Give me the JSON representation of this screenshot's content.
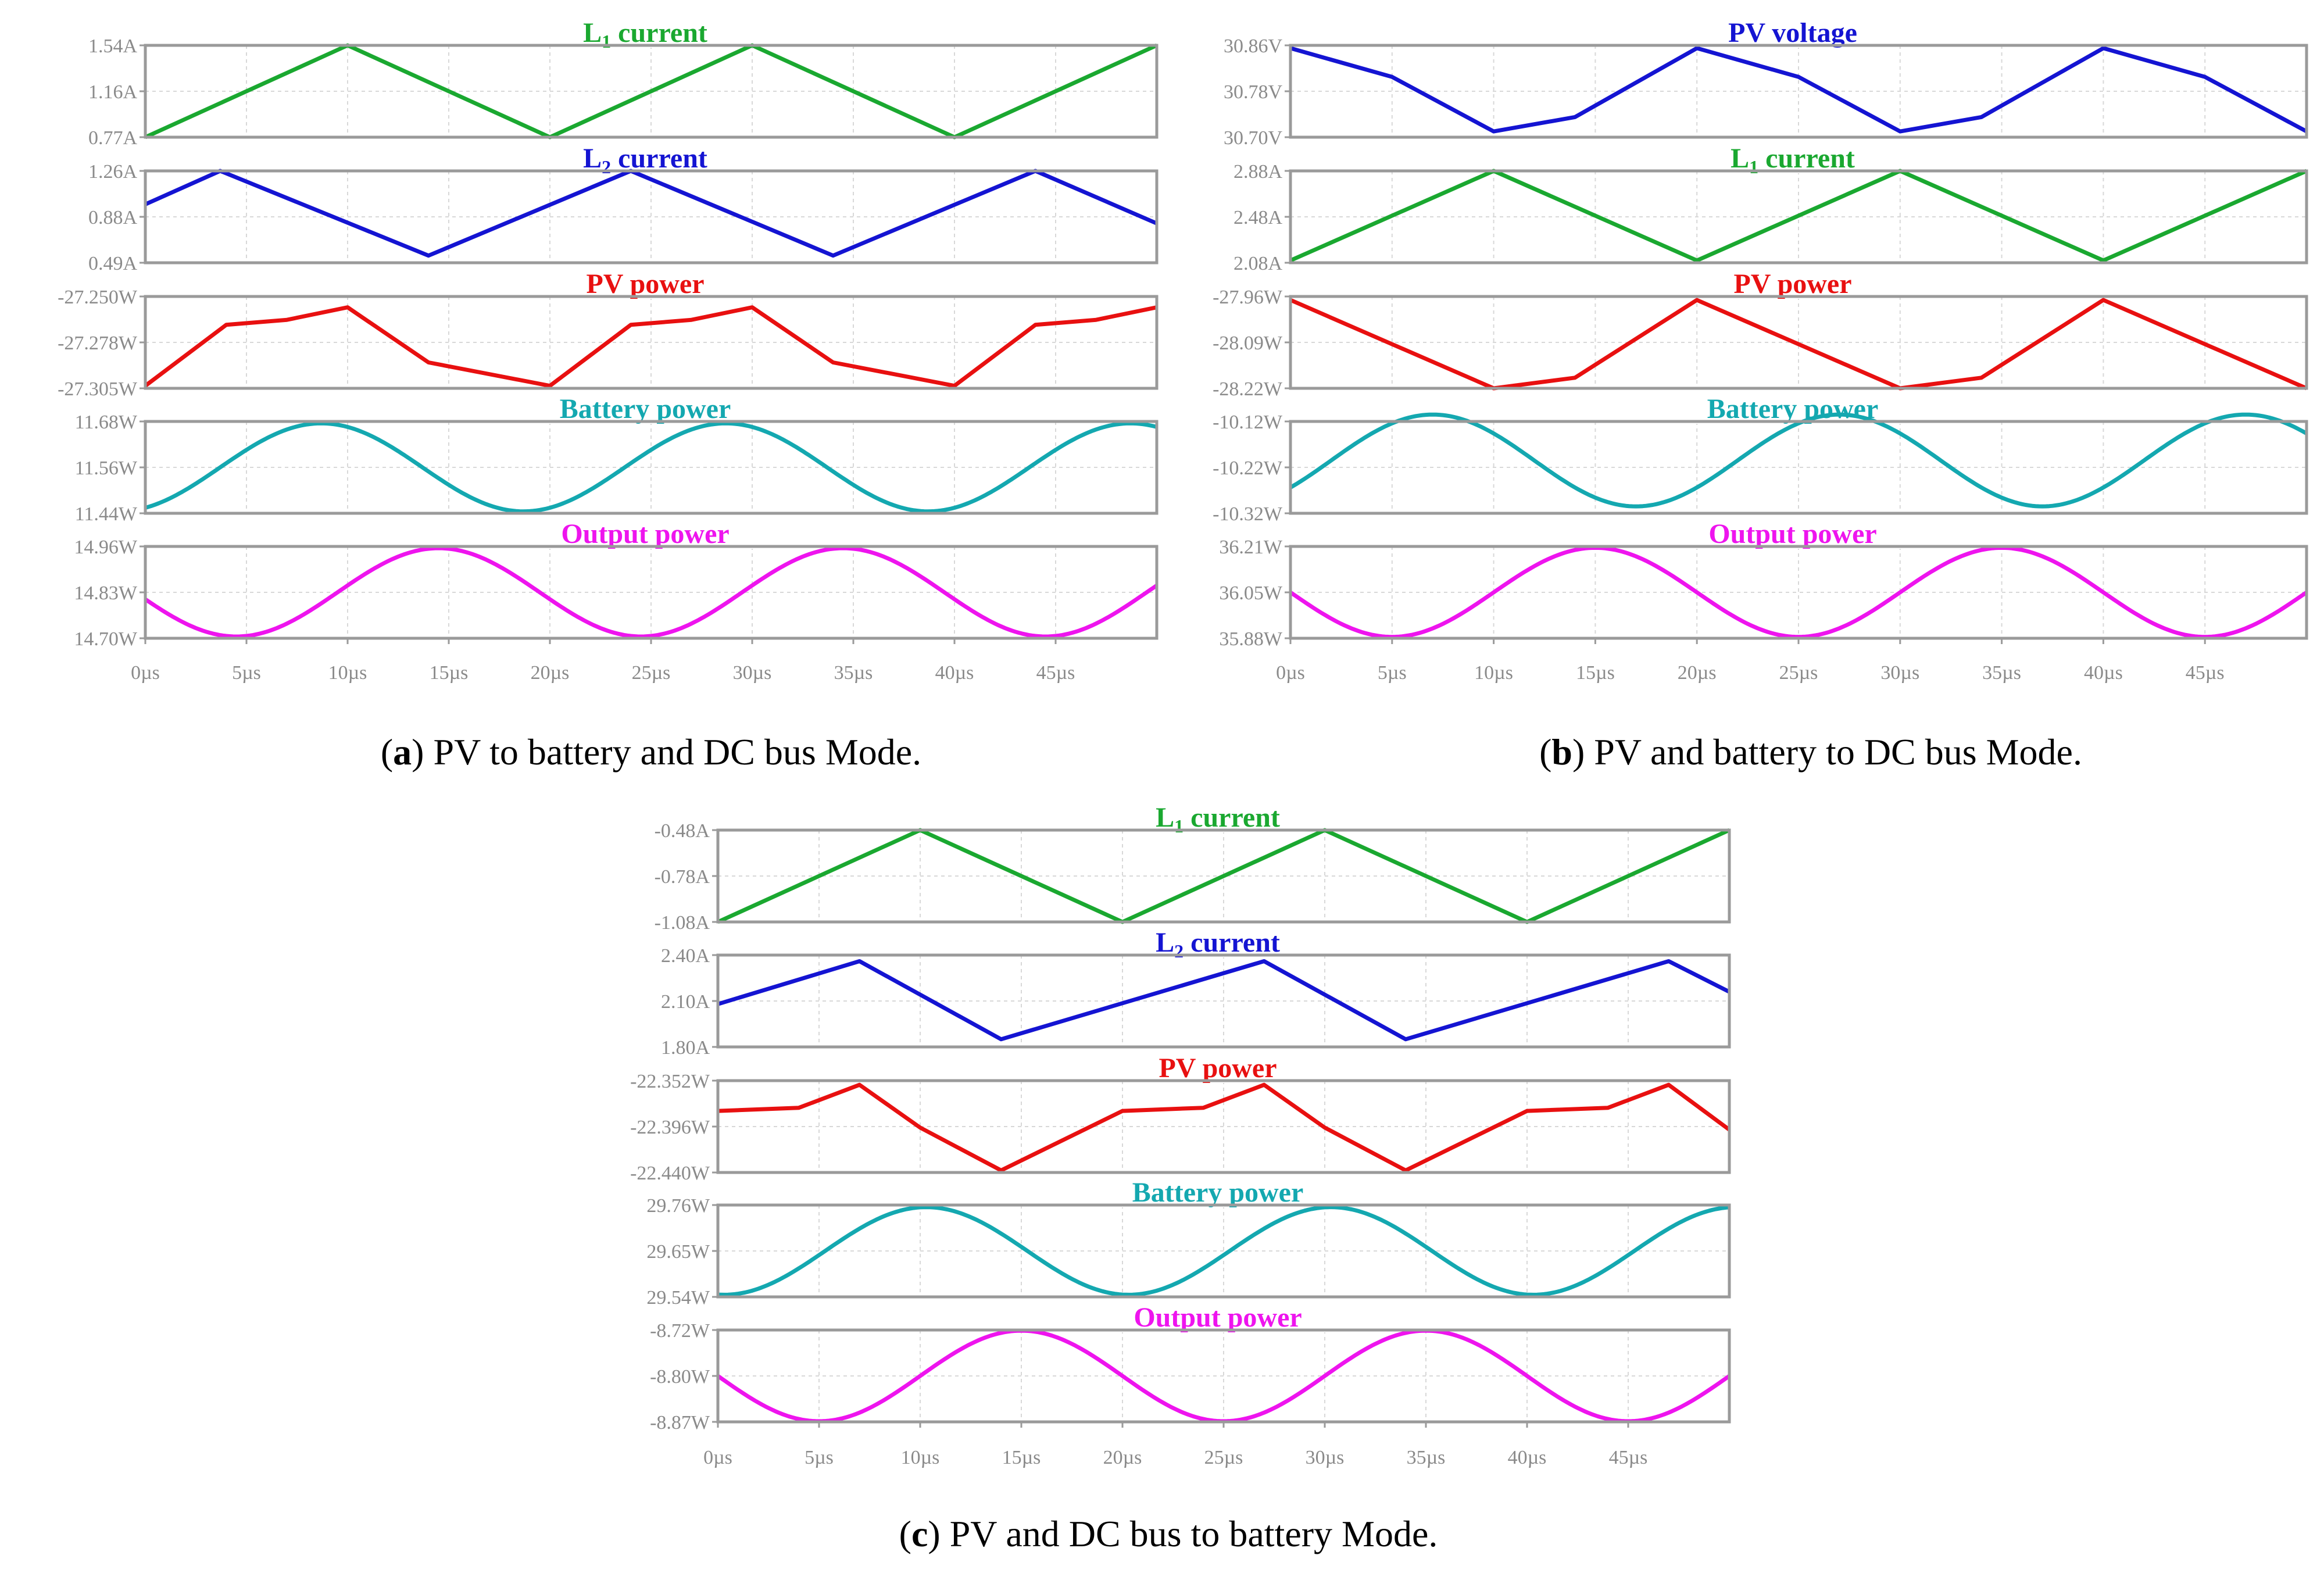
{
  "chart_data": [
    {
      "id": "a",
      "type": "line",
      "caption_letter": "a",
      "caption_rest": ") PV to battery and DC bus Mode.",
      "caption_open": "(",
      "x_ticks": [
        "0µs",
        "5µs",
        "10µs",
        "15µs",
        "20µs",
        "25µs",
        "30µs",
        "35µs",
        "40µs",
        "45µs"
      ],
      "xlim": [
        0,
        50
      ],
      "panels": [
        {
          "title_main": "L",
          "title_sub": "1",
          "title_rest": " current",
          "color": "#1aa830",
          "shape": "tri",
          "points": [
            [
              0,
              0.77
            ],
            [
              10,
              1.54
            ],
            [
              20,
              0.77
            ],
            [
              30,
              1.54
            ],
            [
              40,
              0.77
            ],
            [
              50,
              1.54
            ]
          ],
          "ylim": [
            0.77,
            1.54
          ],
          "y_ticks": [
            "1.54A",
            "1.16A",
            "0.77A"
          ]
        },
        {
          "title_main": "L",
          "title_sub": "2",
          "title_rest": " current",
          "color": "#1414d2",
          "shape": "tri",
          "points": [
            [
              0,
              0.98
            ],
            [
              3.7,
              1.26
            ],
            [
              14,
              0.55
            ],
            [
              24,
              1.26
            ],
            [
              34,
              0.55
            ],
            [
              44,
              1.26
            ],
            [
              50,
              0.82
            ]
          ],
          "ylim": [
            0.49,
            1.26
          ],
          "y_ticks": [
            "1.26A",
            "0.88A",
            "0.49A"
          ]
        },
        {
          "title_main": "PV power",
          "title_sub": "",
          "title_rest": "",
          "color": "#e81010",
          "shape": "poly",
          "points": [
            [
              0,
              -27.3035
            ],
            [
              4,
              -27.267
            ],
            [
              7,
              -27.264
            ],
            [
              10,
              -27.2565
            ],
            [
              14,
              -27.2895
            ],
            [
              20,
              -27.3035
            ],
            [
              24,
              -27.267
            ],
            [
              27,
              -27.264
            ],
            [
              30,
              -27.2565
            ],
            [
              34,
              -27.2895
            ],
            [
              40,
              -27.3035
            ],
            [
              44,
              -27.267
            ],
            [
              47,
              -27.264
            ],
            [
              50,
              -27.2565
            ]
          ],
          "ylim": [
            -27.305,
            -27.25
          ],
          "y_ticks": [
            "-27.250W",
            "-27.278W",
            "-27.305W"
          ]
        },
        {
          "title_main": "Battery power",
          "title_sub": "",
          "title_rest": "",
          "color": "#14a8b0",
          "shape": "sine",
          "wave": {
            "mid": 11.56,
            "amp": 0.115,
            "period": 20,
            "peak_t": 8.7
          },
          "ylim": [
            11.44,
            11.68
          ],
          "y_ticks": [
            "11.68W",
            "11.56W",
            "11.44W"
          ]
        },
        {
          "title_main": "Output power",
          "title_sub": "",
          "title_rest": "",
          "color": "#ee14ee",
          "shape": "sine",
          "wave": {
            "mid": 14.83,
            "amp": 0.125,
            "period": 20,
            "peak_t": 14.5
          },
          "ylim": [
            14.7,
            14.96
          ],
          "y_ticks": [
            "14.96W",
            "14.83W",
            "14.70W"
          ]
        }
      ]
    },
    {
      "id": "b",
      "type": "line",
      "caption_letter": "b",
      "caption_rest": ") PV and battery to DC bus Mode.",
      "caption_open": "(",
      "x_ticks": [
        "0µs",
        "5µs",
        "10µs",
        "15µs",
        "20µs",
        "25µs",
        "30µs",
        "35µs",
        "40µs",
        "45µs"
      ],
      "xlim": [
        0,
        50
      ],
      "panels": [
        {
          "title_main": "PV voltage",
          "title_sub": "",
          "title_rest": "",
          "color": "#1414d2",
          "shape": "poly",
          "points": [
            [
              0,
              30.855
            ],
            [
              5,
              30.805
            ],
            [
              10,
              30.71
            ],
            [
              14,
              30.735
            ],
            [
              20,
              30.855
            ],
            [
              25,
              30.805
            ],
            [
              30,
              30.71
            ],
            [
              34,
              30.735
            ],
            [
              40,
              30.855
            ],
            [
              45,
              30.805
            ],
            [
              50,
              30.71
            ]
          ],
          "ylim": [
            30.7,
            30.86
          ],
          "y_ticks": [
            "30.86V",
            "30.78V",
            "30.70V"
          ]
        },
        {
          "title_main": "L",
          "title_sub": "1",
          "title_rest": " current",
          "color": "#1aa830",
          "shape": "tri",
          "points": [
            [
              0,
              2.1
            ],
            [
              10,
              2.88
            ],
            [
              20,
              2.1
            ],
            [
              30,
              2.88
            ],
            [
              40,
              2.1
            ],
            [
              50,
              2.88
            ]
          ],
          "ylim": [
            2.08,
            2.88
          ],
          "y_ticks": [
            "2.88A",
            "2.48A",
            "2.08A"
          ]
        },
        {
          "title_main": "PV power",
          "title_sub": "",
          "title_rest": "",
          "color": "#e81010",
          "shape": "poly",
          "points": [
            [
              0,
              -27.97
            ],
            [
              10,
              -28.22
            ],
            [
              14,
              -28.19
            ],
            [
              20,
              -27.97
            ],
            [
              30,
              -28.22
            ],
            [
              34,
              -28.19
            ],
            [
              40,
              -27.97
            ],
            [
              50,
              -28.22
            ]
          ],
          "ylim": [
            -28.22,
            -27.96
          ],
          "y_ticks": [
            "-27.96W",
            "-28.09W",
            "-28.22W"
          ]
        },
        {
          "title_main": "Battery power",
          "title_sub": "",
          "title_rest": "",
          "color": "#14a8b0",
          "shape": "sine",
          "wave": {
            "mid": -10.205,
            "amp": 0.1,
            "period": 20,
            "peak_t": 7
          },
          "ylim": [
            -10.32,
            -10.12
          ],
          "y_ticks": [
            "-10.12W",
            "-10.22W",
            "-10.32W"
          ]
        },
        {
          "title_main": "Output power",
          "title_sub": "",
          "title_rest": "",
          "color": "#ee14ee",
          "shape": "sine",
          "wave": {
            "mid": 36.045,
            "amp": 0.16,
            "period": 20,
            "peak_t": 15
          },
          "ylim": [
            35.88,
            36.21
          ],
          "y_ticks": [
            "36.21W",
            "36.05W",
            "35.88W"
          ]
        }
      ]
    },
    {
      "id": "c",
      "type": "line",
      "caption_letter": "c",
      "caption_rest": ") PV and DC bus to battery Mode.",
      "caption_open": "(",
      "x_ticks": [
        "0µs",
        "5µs",
        "10µs",
        "15µs",
        "20µs",
        "25µs",
        "30µs",
        "35µs",
        "40µs",
        "45µs"
      ],
      "xlim": [
        0,
        50
      ],
      "panels": [
        {
          "title_main": "L",
          "title_sub": "1",
          "title_rest": " current",
          "color": "#1aa830",
          "shape": "tri",
          "points": [
            [
              0,
              -1.08
            ],
            [
              10,
              -0.48
            ],
            [
              20,
              -1.08
            ],
            [
              30,
              -0.48
            ],
            [
              40,
              -1.08
            ],
            [
              50,
              -0.48
            ]
          ],
          "ylim": [
            -1.08,
            -0.48
          ],
          "y_ticks": [
            "-0.48A",
            "-0.78A",
            "-1.08A"
          ]
        },
        {
          "title_main": "L",
          "title_sub": "2",
          "title_rest": " current",
          "color": "#1414d2",
          "shape": "tri",
          "points": [
            [
              0,
              2.08
            ],
            [
              7,
              2.36
            ],
            [
              14,
              1.85
            ],
            [
              27,
              2.36
            ],
            [
              34,
              1.85
            ],
            [
              47,
              2.36
            ],
            [
              50,
              2.16
            ]
          ],
          "ylim": [
            1.8,
            2.4
          ],
          "y_ticks": [
            "2.40A",
            "2.10A",
            "1.80A"
          ]
        },
        {
          "title_main": "PV power",
          "title_sub": "",
          "title_rest": "",
          "color": "#e81010",
          "shape": "poly",
          "points": [
            [
              0,
              -22.381
            ],
            [
              4,
              -22.378
            ],
            [
              7,
              -22.356
            ],
            [
              10,
              -22.397
            ],
            [
              14,
              -22.438
            ],
            [
              20,
              -22.381
            ],
            [
              24,
              -22.378
            ],
            [
              27,
              -22.356
            ],
            [
              30,
              -22.397
            ],
            [
              34,
              -22.438
            ],
            [
              40,
              -22.381
            ],
            [
              44,
              -22.378
            ],
            [
              47,
              -22.356
            ],
            [
              50,
              -22.399
            ]
          ],
          "ylim": [
            -22.44,
            -22.352
          ],
          "y_ticks": [
            "-22.352W",
            "-22.396W",
            "-22.440W"
          ]
        },
        {
          "title_main": "Battery power",
          "title_sub": "",
          "title_rest": "",
          "color": "#14a8b0",
          "shape": "sine",
          "wave": {
            "mid": 29.65,
            "amp": 0.105,
            "period": 20,
            "peak_t": 10.3
          },
          "ylim": [
            29.54,
            29.76
          ],
          "y_ticks": [
            "29.76W",
            "29.65W",
            "29.54W"
          ]
        },
        {
          "title_main": "Output power",
          "title_sub": "",
          "title_rest": "",
          "color": "#ee14ee",
          "shape": "sine",
          "wave": {
            "mid": -8.795,
            "amp": 0.074,
            "period": 20,
            "peak_t": 15
          },
          "ylim": [
            -8.87,
            -8.72
          ],
          "y_ticks": [
            "-8.72W",
            "-8.80W",
            "-8.87W"
          ]
        }
      ]
    }
  ]
}
